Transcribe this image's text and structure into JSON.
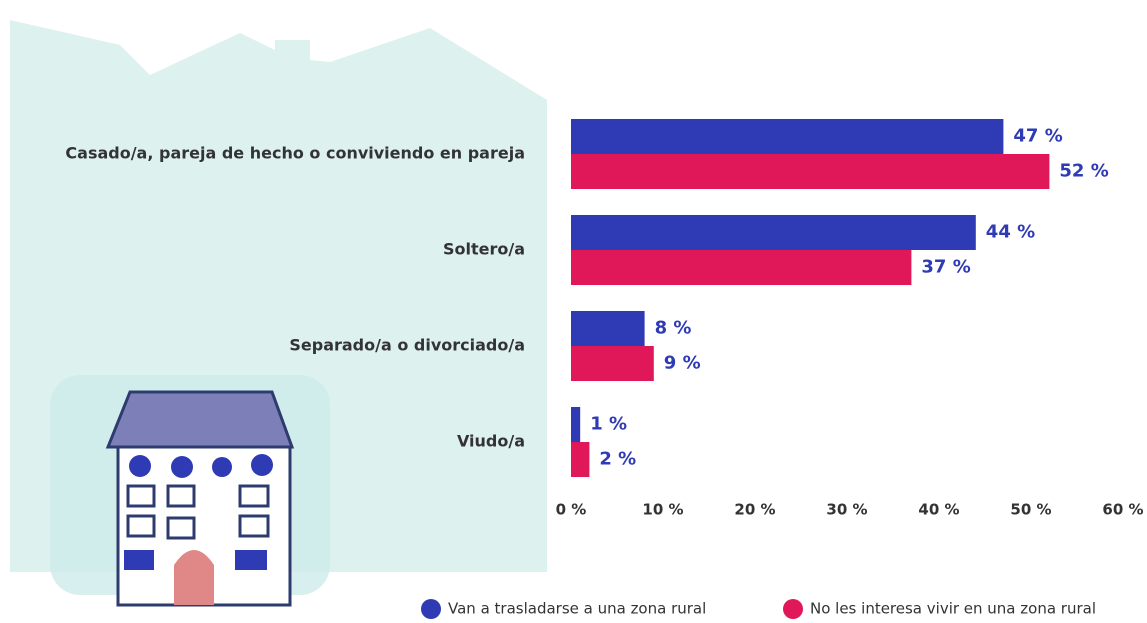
{
  "chart_data": {
    "type": "hbar",
    "categories": [
      "Casado/a, pareja de hecho o conviviendo en pareja",
      "Soltero/a",
      "Separado/a o divorciado/a",
      "Viudo/a"
    ],
    "series": [
      {
        "name": "Van a trasladarse a una zona rural",
        "color": "#2e3bb5",
        "values": [
          47,
          44,
          8,
          1
        ],
        "value_labels": [
          "47 %",
          "44 %",
          "8 %",
          "1 %"
        ]
      },
      {
        "name": "No les interesa vivir en una zona rural",
        "color": "#e0185a",
        "values": [
          52,
          37,
          9,
          2
        ],
        "value_labels": [
          "52 %",
          "37 %",
          "9 %",
          "2 %"
        ]
      }
    ],
    "xlim": [
      0,
      60
    ],
    "xticks": [
      {
        "value": 0,
        "label": "0 %"
      },
      {
        "value": 10,
        "label": "10 %"
      },
      {
        "value": 20,
        "label": "20 %"
      },
      {
        "value": 30,
        "label": "30 %"
      },
      {
        "value": 40,
        "label": "40 %"
      },
      {
        "value": 50,
        "label": "50 %"
      },
      {
        "value": 60,
        "label": "60 %"
      }
    ],
    "legend": "bottom",
    "grid": false
  }
}
